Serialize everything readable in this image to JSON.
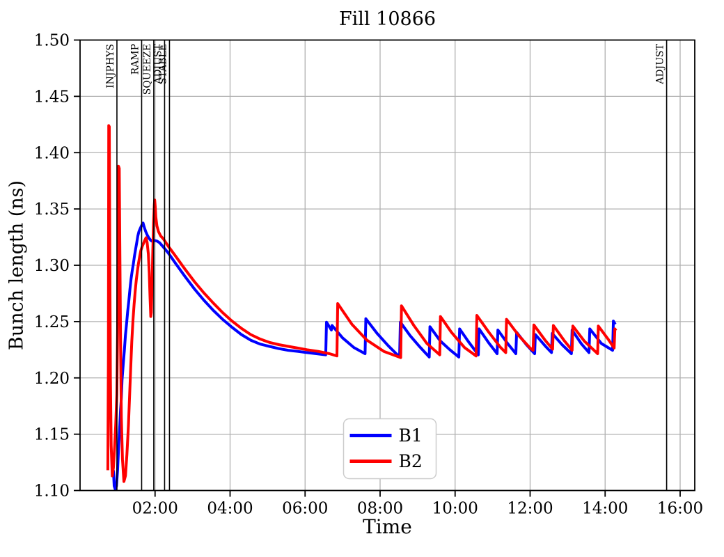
{
  "chart_data": {
    "type": "line",
    "title": "Fill 10866",
    "xlabel": "Time",
    "ylabel": "Bunch length (ns)",
    "x_unit": "hours_since_fill_start",
    "xlim": [
      0,
      16.39
    ],
    "ylim": [
      1.1,
      1.5
    ],
    "grid": true,
    "colors": {
      "grid": "#b0b0b0",
      "axis": "#000000",
      "b1": "#0000ff",
      "b2": "#ff0000",
      "legend_border": "#cccccc"
    },
    "x_ticks": [
      {
        "hour": 2,
        "label": "02:00"
      },
      {
        "hour": 4,
        "label": "04:00"
      },
      {
        "hour": 6,
        "label": "06:00"
      },
      {
        "hour": 8,
        "label": "08:00"
      },
      {
        "hour": 10,
        "label": "10:00"
      },
      {
        "hour": 12,
        "label": "12:00"
      },
      {
        "hour": 14,
        "label": "14:00"
      },
      {
        "hour": 16,
        "label": "16:00"
      }
    ],
    "y_ticks": [
      {
        "value": 1.1,
        "label": "1.10"
      },
      {
        "value": 1.15,
        "label": "1.15"
      },
      {
        "value": 1.2,
        "label": "1.20"
      },
      {
        "value": 1.25,
        "label": "1.25"
      },
      {
        "value": 1.3,
        "label": "1.30"
      },
      {
        "value": 1.35,
        "label": "1.35"
      },
      {
        "value": 1.4,
        "label": "1.40"
      },
      {
        "value": 1.45,
        "label": "1.45"
      },
      {
        "value": 1.5,
        "label": "1.50"
      }
    ],
    "event_lines": [
      {
        "label": "INJPHYS",
        "hour": 0.983
      },
      {
        "label": "RAMP",
        "hour": 1.642
      },
      {
        "label": "SQUEEZE",
        "hour": 1.966
      },
      {
        "label": "ADJUST",
        "hour": 2.254
      },
      {
        "label": "STABLE",
        "hour": 2.384
      },
      {
        "label": "ADJUST",
        "hour": 15.64
      }
    ],
    "legend": {
      "position": "lower-center",
      "entries": [
        {
          "label": "B1",
          "color": "#0000ff"
        },
        {
          "label": "B2",
          "color": "#ff0000"
        }
      ]
    },
    "series": [
      {
        "name": "B1",
        "color": "#0000ff",
        "points": [
          [
            0.89,
            1.118
          ],
          [
            0.91,
            1.104
          ],
          [
            0.94,
            1.101
          ],
          [
            0.97,
            1.104
          ],
          [
            1.0,
            1.118
          ],
          [
            1.03,
            1.14
          ],
          [
            1.06,
            1.158
          ],
          [
            1.08,
            1.172
          ],
          [
            1.1,
            1.182
          ],
          [
            1.12,
            1.198
          ],
          [
            1.15,
            1.212
          ],
          [
            1.18,
            1.224
          ],
          [
            1.21,
            1.238
          ],
          [
            1.24,
            1.248
          ],
          [
            1.27,
            1.259
          ],
          [
            1.3,
            1.268
          ],
          [
            1.33,
            1.279
          ],
          [
            1.36,
            1.288
          ],
          [
            1.39,
            1.295
          ],
          [
            1.42,
            1.301
          ],
          [
            1.45,
            1.308
          ],
          [
            1.48,
            1.314
          ],
          [
            1.51,
            1.32
          ],
          [
            1.54,
            1.326
          ],
          [
            1.57,
            1.33
          ],
          [
            1.61,
            1.333
          ],
          [
            1.65,
            1.336
          ],
          [
            1.68,
            1.3375
          ],
          [
            1.71,
            1.334
          ],
          [
            1.75,
            1.33
          ],
          [
            1.79,
            1.327
          ],
          [
            1.84,
            1.324
          ],
          [
            1.89,
            1.322
          ],
          [
            1.94,
            1.321
          ],
          [
            1.99,
            1.322
          ],
          [
            2.05,
            1.3215
          ],
          [
            2.12,
            1.32
          ],
          [
            2.2,
            1.317
          ],
          [
            2.35,
            1.311
          ],
          [
            2.55,
            1.3015
          ],
          [
            2.8,
            1.29
          ],
          [
            3.05,
            1.279
          ],
          [
            3.3,
            1.269
          ],
          [
            3.55,
            1.26
          ],
          [
            3.8,
            1.252
          ],
          [
            4.05,
            1.245
          ],
          [
            4.3,
            1.2385
          ],
          [
            4.55,
            1.2335
          ],
          [
            4.8,
            1.23
          ],
          [
            5.05,
            1.228
          ],
          [
            5.3,
            1.226
          ],
          [
            5.55,
            1.2245
          ],
          [
            5.8,
            1.2235
          ],
          [
            6.05,
            1.2225
          ],
          [
            6.3,
            1.2215
          ],
          [
            6.55,
            1.2205
          ],
          [
            6.57,
            1.2495
          ],
          [
            6.7,
            1.2425
          ],
          [
            6.72,
            1.2465
          ],
          [
            7.0,
            1.2355
          ],
          [
            7.3,
            1.227
          ],
          [
            7.6,
            1.2215
          ],
          [
            7.62,
            1.2525
          ],
          [
            7.92,
            1.2395
          ],
          [
            8.22,
            1.2285
          ],
          [
            8.52,
            1.2185
          ],
          [
            8.54,
            1.2495
          ],
          [
            8.8,
            1.2375
          ],
          [
            9.06,
            1.2275
          ],
          [
            9.31,
            1.2185
          ],
          [
            9.33,
            1.2455
          ],
          [
            9.6,
            1.233
          ],
          [
            9.86,
            1.225
          ],
          [
            10.1,
            1.2185
          ],
          [
            10.12,
            1.2435
          ],
          [
            10.36,
            1.232
          ],
          [
            10.62,
            1.2205
          ],
          [
            10.64,
            1.2435
          ],
          [
            10.9,
            1.231
          ],
          [
            11.12,
            1.2215
          ],
          [
            11.14,
            1.2425
          ],
          [
            11.4,
            1.2305
          ],
          [
            11.62,
            1.2215
          ],
          [
            11.64,
            1.2405
          ],
          [
            11.9,
            1.2295
          ],
          [
            12.12,
            1.2215
          ],
          [
            12.14,
            1.2385
          ],
          [
            12.4,
            1.2285
          ],
          [
            12.57,
            1.2225
          ],
          [
            12.59,
            1.2395
          ],
          [
            12.85,
            1.2295
          ],
          [
            13.1,
            1.2215
          ],
          [
            13.12,
            1.2425
          ],
          [
            13.36,
            1.2305
          ],
          [
            13.57,
            1.2225
          ],
          [
            13.59,
            1.2435
          ],
          [
            13.9,
            1.2305
          ],
          [
            14.2,
            1.2245
          ],
          [
            14.22,
            1.2505
          ],
          [
            14.27,
            1.2475
          ]
        ]
      },
      {
        "name": "B2",
        "color": "#ff0000",
        "points": [
          [
            0.74,
            1.118
          ],
          [
            0.755,
            1.22
          ],
          [
            0.765,
            1.424
          ],
          [
            0.78,
            1.423
          ],
          [
            0.795,
            1.3
          ],
          [
            0.81,
            1.2
          ],
          [
            0.83,
            1.14
          ],
          [
            0.86,
            1.113
          ],
          [
            0.89,
            1.12
          ],
          [
            0.92,
            1.138
          ],
          [
            0.95,
            1.158
          ],
          [
            0.98,
            1.185
          ],
          [
            1.0,
            1.24
          ],
          [
            1.015,
            1.32
          ],
          [
            1.025,
            1.388
          ],
          [
            1.045,
            1.386
          ],
          [
            1.06,
            1.32
          ],
          [
            1.08,
            1.23
          ],
          [
            1.1,
            1.165
          ],
          [
            1.13,
            1.128
          ],
          [
            1.17,
            1.108
          ],
          [
            1.21,
            1.113
          ],
          [
            1.25,
            1.132
          ],
          [
            1.29,
            1.158
          ],
          [
            1.32,
            1.183
          ],
          [
            1.35,
            1.208
          ],
          [
            1.38,
            1.232
          ],
          [
            1.41,
            1.251
          ],
          [
            1.44,
            1.265
          ],
          [
            1.47,
            1.277
          ],
          [
            1.5,
            1.287
          ],
          [
            1.53,
            1.295
          ],
          [
            1.56,
            1.302
          ],
          [
            1.59,
            1.308
          ],
          [
            1.62,
            1.313
          ],
          [
            1.66,
            1.317
          ],
          [
            1.7,
            1.32
          ],
          [
            1.73,
            1.3225
          ],
          [
            1.76,
            1.3245
          ],
          [
            1.79,
            1.32
          ],
          [
            1.82,
            1.31
          ],
          [
            1.845,
            1.293
          ],
          [
            1.865,
            1.272
          ],
          [
            1.885,
            1.2545
          ],
          [
            1.9,
            1.258
          ],
          [
            1.92,
            1.283
          ],
          [
            1.94,
            1.313
          ],
          [
            1.96,
            1.338
          ],
          [
            1.98,
            1.354
          ],
          [
            1.99,
            1.358
          ],
          [
            2.005,
            1.352
          ],
          [
            2.02,
            1.343
          ],
          [
            2.05,
            1.335
          ],
          [
            2.09,
            1.33
          ],
          [
            2.15,
            1.326
          ],
          [
            2.22,
            1.3235
          ],
          [
            2.35,
            1.317
          ],
          [
            2.55,
            1.308
          ],
          [
            2.8,
            1.2965
          ],
          [
            3.05,
            1.2855
          ],
          [
            3.3,
            1.2755
          ],
          [
            3.55,
            1.2665
          ],
          [
            3.8,
            1.258
          ],
          [
            4.05,
            1.2505
          ],
          [
            4.3,
            1.244
          ],
          [
            4.55,
            1.2385
          ],
          [
            4.8,
            1.2345
          ],
          [
            5.05,
            1.2315
          ],
          [
            5.3,
            1.2295
          ],
          [
            5.55,
            1.228
          ],
          [
            5.8,
            1.2265
          ],
          [
            6.05,
            1.225
          ],
          [
            6.35,
            1.2235
          ],
          [
            6.65,
            1.2215
          ],
          [
            6.85,
            1.2195
          ],
          [
            6.87,
            1.266
          ],
          [
            7.25,
            1.2475
          ],
          [
            7.65,
            1.2335
          ],
          [
            8.1,
            1.2235
          ],
          [
            8.55,
            1.218
          ],
          [
            8.57,
            1.264
          ],
          [
            8.9,
            1.2465
          ],
          [
            9.25,
            1.2305
          ],
          [
            9.59,
            1.2205
          ],
          [
            9.61,
            1.2545
          ],
          [
            9.9,
            1.2405
          ],
          [
            10.25,
            1.227
          ],
          [
            10.56,
            1.2195
          ],
          [
            10.58,
            1.2555
          ],
          [
            10.9,
            1.2405
          ],
          [
            11.2,
            1.2275
          ],
          [
            11.35,
            1.2225
          ],
          [
            11.37,
            1.252
          ],
          [
            11.7,
            1.2375
          ],
          [
            12.0,
            1.2265
          ],
          [
            12.08,
            1.2245
          ],
          [
            12.1,
            1.247
          ],
          [
            12.4,
            1.2335
          ],
          [
            12.6,
            1.2255
          ],
          [
            12.62,
            1.2465
          ],
          [
            12.9,
            1.2335
          ],
          [
            13.12,
            1.2245
          ],
          [
            13.14,
            1.246
          ],
          [
            13.45,
            1.2325
          ],
          [
            13.8,
            1.2215
          ],
          [
            13.82,
            1.246
          ],
          [
            14.1,
            1.2335
          ],
          [
            14.24,
            1.2265
          ],
          [
            14.26,
            1.2435
          ],
          [
            14.29,
            1.242
          ]
        ]
      }
    ]
  }
}
